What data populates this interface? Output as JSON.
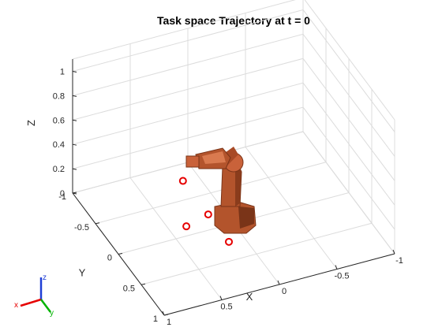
{
  "chart_data": {
    "type": "scatter",
    "title": "Task space Trajectory at t = 0",
    "xlabel": "X",
    "ylabel": "Y",
    "zlabel": "Z",
    "xlim": [
      -1,
      1
    ],
    "ylim": [
      -1,
      1
    ],
    "zlim": [
      0,
      1.1
    ],
    "xticks": [
      1,
      0.5,
      0,
      -0.5,
      -1
    ],
    "xtick_labels": [
      "1",
      "0.5",
      "0",
      "-0.5",
      "-1"
    ],
    "yticks": [
      -1,
      -0.5,
      0,
      0.5,
      1
    ],
    "ytick_labels": [
      "-1",
      "-0.5",
      "0",
      "0.5",
      "1"
    ],
    "zticks": [
      0,
      0.2,
      0.4,
      0.6,
      0.8,
      1
    ],
    "ztick_labels": [
      "0",
      "0.2",
      "0.4",
      "0.6",
      "0.8",
      "1"
    ],
    "grid": true,
    "view": "3d",
    "series": [
      {
        "marker": "circle",
        "color": "#e60000",
        "points": [
          {
            "x": 0.4,
            "y": -0.1,
            "z": 0.4
          },
          {
            "x": 0.3,
            "y": 0.2,
            "z": 0.25
          },
          {
            "x": 0.45,
            "y": 0.1,
            "z": 0.14
          },
          {
            "x": 0.2,
            "y": 0.4,
            "z": 0.1
          }
        ]
      }
    ]
  },
  "robot": {
    "color": "#b3542c",
    "shade": "#7a3418",
    "highlight": "#d97a4f"
  },
  "triad": {
    "x_label": "x",
    "y_label": "y",
    "z_label": "z",
    "x_color": "#e60000",
    "y_color": "#00b300",
    "z_color": "#1f3fd6"
  }
}
